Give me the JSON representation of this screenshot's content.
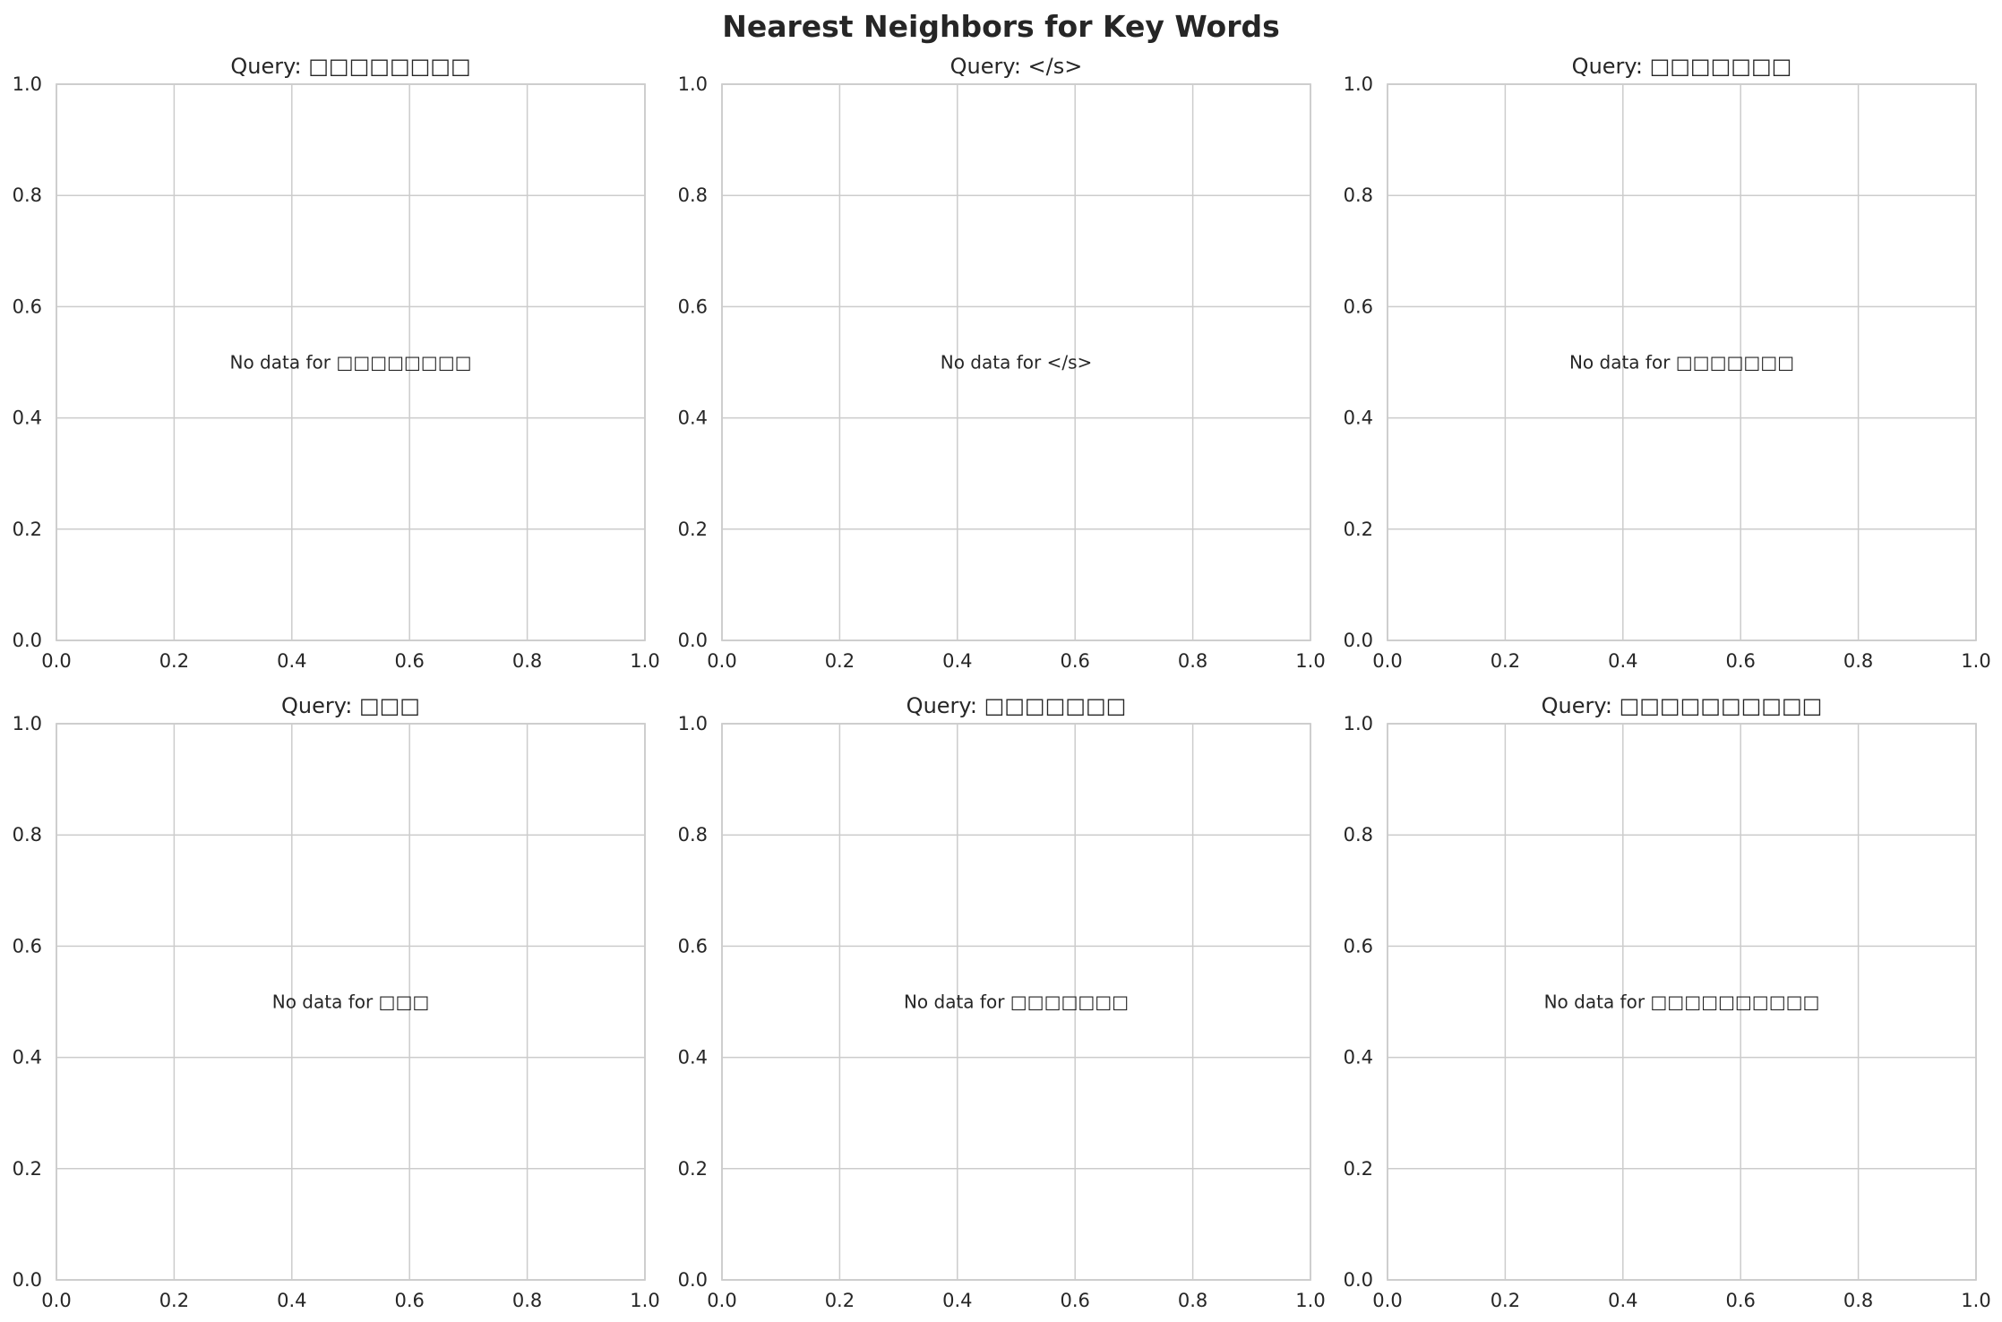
{
  "figure": {
    "title": "Nearest Neighbors for Key Words"
  },
  "chart_data": [
    {
      "type": "scatter",
      "title": "Query: □□□□□□□□",
      "annotation": "No data for □□□□□□□□",
      "xlim": [
        0,
        1
      ],
      "ylim": [
        0,
        1
      ],
      "grid": true,
      "x_ticks": [
        "0.0",
        "0.2",
        "0.4",
        "0.6",
        "0.8",
        "1.0"
      ],
      "y_ticks": [
        "0.0",
        "0.2",
        "0.4",
        "0.6",
        "0.8",
        "1.0"
      ],
      "series": []
    },
    {
      "type": "scatter",
      "title": "Query: </s>",
      "annotation": "No data for </s>",
      "xlim": [
        0,
        1
      ],
      "ylim": [
        0,
        1
      ],
      "grid": true,
      "x_ticks": [
        "0.0",
        "0.2",
        "0.4",
        "0.6",
        "0.8",
        "1.0"
      ],
      "y_ticks": [
        "0.0",
        "0.2",
        "0.4",
        "0.6",
        "0.8",
        "1.0"
      ],
      "series": []
    },
    {
      "type": "scatter",
      "title": "Query: □□□□□□□",
      "annotation": "No data for □□□□□□□",
      "xlim": [
        0,
        1
      ],
      "ylim": [
        0,
        1
      ],
      "grid": true,
      "x_ticks": [
        "0.0",
        "0.2",
        "0.4",
        "0.6",
        "0.8",
        "1.0"
      ],
      "y_ticks": [
        "0.0",
        "0.2",
        "0.4",
        "0.6",
        "0.8",
        "1.0"
      ],
      "series": []
    },
    {
      "type": "scatter",
      "title": "Query: □□□",
      "annotation": "No data for □□□",
      "xlim": [
        0,
        1
      ],
      "ylim": [
        0,
        1
      ],
      "grid": true,
      "x_ticks": [
        "0.0",
        "0.2",
        "0.4",
        "0.6",
        "0.8",
        "1.0"
      ],
      "y_ticks": [
        "0.0",
        "0.2",
        "0.4",
        "0.6",
        "0.8",
        "1.0"
      ],
      "series": []
    },
    {
      "type": "scatter",
      "title": "Query: □□□□□□□",
      "annotation": "No data for □□□□□□□",
      "xlim": [
        0,
        1
      ],
      "ylim": [
        0,
        1
      ],
      "grid": true,
      "x_ticks": [
        "0.0",
        "0.2",
        "0.4",
        "0.6",
        "0.8",
        "1.0"
      ],
      "y_ticks": [
        "0.0",
        "0.2",
        "0.4",
        "0.6",
        "0.8",
        "1.0"
      ],
      "series": []
    },
    {
      "type": "scatter",
      "title": "Query: □□□□□□□□□□",
      "annotation": "No data for □□□□□□□□□□",
      "xlim": [
        0,
        1
      ],
      "ylim": [
        0,
        1
      ],
      "grid": true,
      "x_ticks": [
        "0.0",
        "0.2",
        "0.4",
        "0.6",
        "0.8",
        "1.0"
      ],
      "y_ticks": [
        "0.0",
        "0.2",
        "0.4",
        "0.6",
        "0.8",
        "1.0"
      ],
      "series": []
    }
  ]
}
